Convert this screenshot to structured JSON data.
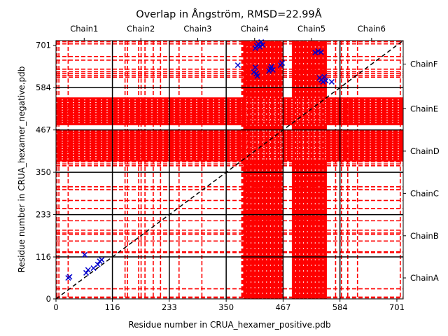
{
  "chart_data": {
    "type": "scatter",
    "title": "Overlap in Ångström, RMSD=22.99Å",
    "xlabel": "Residue number in CRUA_hexamer_positive.pdb",
    "ylabel": "Residue number in CRUA_hexamer_negative.pdb",
    "xlim": [
      0,
      714
    ],
    "ylim": [
      0,
      714
    ],
    "x_ticks": [
      0,
      116,
      233,
      350,
      467,
      584,
      701
    ],
    "y_ticks": [
      0,
      116,
      233,
      350,
      467,
      584,
      701
    ],
    "top_chain_labels": [
      "Chain1",
      "Chain2",
      "Chain3",
      "Chain4",
      "Chain5",
      "Chain6"
    ],
    "right_chain_labels": [
      "ChainA",
      "ChainB",
      "ChainC",
      "ChainD",
      "ChainE",
      "ChainF"
    ],
    "chain_boundaries": [
      116,
      233,
      350,
      467,
      584
    ],
    "diagonal": {
      "style": "dashed",
      "color": "#000000",
      "from": [
        0,
        0
      ],
      "to": [
        714,
        714
      ]
    },
    "colors": {
      "overlap": "#ff0000",
      "markers": "#0000cc",
      "boundary": "#000000"
    },
    "x_bands": [
      {
        "from": 385,
        "to": 468
      },
      {
        "from": 485,
        "to": 557
      }
    ],
    "y_bands": [
      {
        "from": 380,
        "to": 468
      },
      {
        "from": 480,
        "to": 557
      }
    ],
    "x_dashed_lines": [
      2,
      6,
      25,
      142,
      147,
      170,
      175,
      183,
      200,
      215,
      253,
      300,
      382,
      384,
      389,
      394,
      575,
      587,
      600,
      620,
      708
    ],
    "y_dashed_lines": [
      3,
      5,
      28,
      128,
      130,
      160,
      178,
      182,
      190,
      216,
      250,
      272,
      302,
      310,
      368,
      373,
      379,
      613,
      618,
      623,
      628,
      635,
      660,
      670,
      705,
      711
    ],
    "x_markers": [
      {
        "x": 25,
        "y": 58
      },
      {
        "x": 28,
        "y": 61
      },
      {
        "x": 59,
        "y": 122
      },
      {
        "x": 62,
        "y": 72
      },
      {
        "x": 66,
        "y": 80
      },
      {
        "x": 77,
        "y": 85
      },
      {
        "x": 86,
        "y": 95
      },
      {
        "x": 90,
        "y": 104
      },
      {
        "x": 94,
        "y": 108
      },
      {
        "x": 374,
        "y": 646
      },
      {
        "x": 407,
        "y": 627
      },
      {
        "x": 410,
        "y": 640
      },
      {
        "x": 412,
        "y": 623
      },
      {
        "x": 414,
        "y": 616
      },
      {
        "x": 410,
        "y": 693
      },
      {
        "x": 413,
        "y": 700
      },
      {
        "x": 416,
        "y": 705
      },
      {
        "x": 419,
        "y": 697
      },
      {
        "x": 422,
        "y": 710
      },
      {
        "x": 425,
        "y": 702
      },
      {
        "x": 438,
        "y": 630
      },
      {
        "x": 441,
        "y": 636
      },
      {
        "x": 443,
        "y": 642
      },
      {
        "x": 446,
        "y": 633
      },
      {
        "x": 462,
        "y": 646
      },
      {
        "x": 465,
        "y": 652
      },
      {
        "x": 533,
        "y": 681
      },
      {
        "x": 539,
        "y": 685
      },
      {
        "x": 545,
        "y": 682
      },
      {
        "x": 542,
        "y": 611
      },
      {
        "x": 546,
        "y": 606
      },
      {
        "x": 549,
        "y": 600
      },
      {
        "x": 552,
        "y": 614
      },
      {
        "x": 555,
        "y": 603
      },
      {
        "x": 567,
        "y": 600
      }
    ]
  }
}
